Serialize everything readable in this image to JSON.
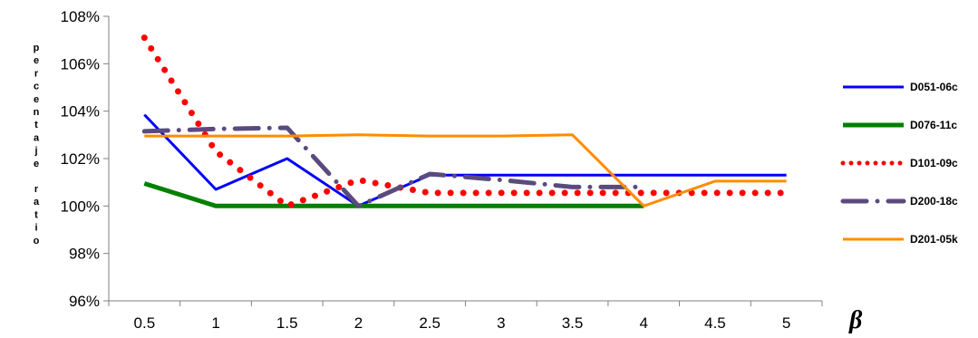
{
  "chart_data": {
    "type": "line",
    "title": "",
    "xlabel": "β",
    "ylabel": "percentaje ratio",
    "categories": [
      "0.5",
      "1",
      "1.5",
      "2",
      "2.5",
      "3",
      "3.5",
      "4",
      "4.5",
      "5"
    ],
    "ylim": [
      96,
      108
    ],
    "yticks": [
      "96%",
      "98%",
      "100%",
      "102%",
      "104%",
      "106%",
      "108%"
    ],
    "grid": false,
    "legend": "right",
    "series": [
      {
        "name": "D051-06c",
        "color": "#0000ff",
        "style": "solid",
        "values": [
          103.85,
          100.7,
          102.0,
          100.0,
          101.3,
          101.3,
          101.3,
          101.3,
          101.3,
          101.3
        ]
      },
      {
        "name": "D076-11c",
        "color": "#008000",
        "style": "solid",
        "values": [
          100.95,
          100.0,
          100.0,
          100.0,
          100.0,
          100.0,
          100.0,
          100.0,
          null,
          null
        ]
      },
      {
        "name": "D101-09c",
        "color": "#ff0000",
        "style": "dotted",
        "values": [
          107.1,
          102.3,
          100.0,
          101.1,
          100.55,
          100.55,
          100.55,
          100.55,
          100.55,
          100.55
        ]
      },
      {
        "name": "D200-18c",
        "color": "#5b4a7e",
        "style": "dashdot",
        "values": [
          103.15,
          103.25,
          103.3,
          100.0,
          101.35,
          101.1,
          100.8,
          100.8,
          null,
          null
        ]
      },
      {
        "name": "D201-05k",
        "color": "#ff8c00",
        "style": "solid",
        "values": [
          102.95,
          102.95,
          102.95,
          103.0,
          102.95,
          102.95,
          103.0,
          100.0,
          101.05,
          101.05
        ]
      }
    ]
  }
}
